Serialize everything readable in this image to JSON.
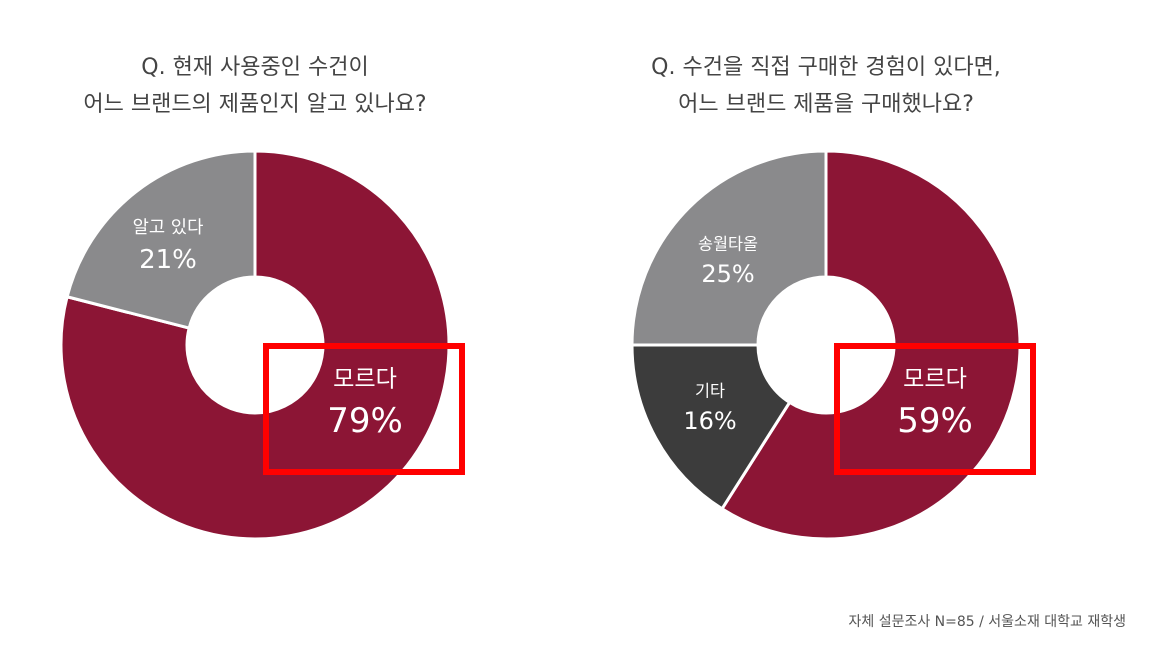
{
  "chart_data": [
    {
      "type": "pie",
      "title": [
        "Q. 현재 사용중인 수건이",
        "어느 브랜드의 제품인지 알고 있나요?"
      ],
      "categories": [
        "모르다",
        "알고 있다"
      ],
      "values": [
        79,
        21
      ],
      "value_labels": [
        "79%",
        "21%"
      ],
      "colors": [
        "#8c1535",
        "#8a8a8c"
      ]
    },
    {
      "type": "pie",
      "title": [
        "Q. 수건을 직접 구매한 경험이 있다면,",
        "어느 브랜드 제품을 구매했나요?"
      ],
      "categories": [
        "모르다",
        "기타",
        "송월타올"
      ],
      "values": [
        59,
        16,
        25
      ],
      "value_labels": [
        "59%",
        "16%",
        "25%"
      ],
      "colors": [
        "#8c1535",
        "#3c3c3c",
        "#8a8a8c"
      ]
    }
  ],
  "footnote": "자체 설문조사 N=85 / 서울소재 대학교 재학생"
}
